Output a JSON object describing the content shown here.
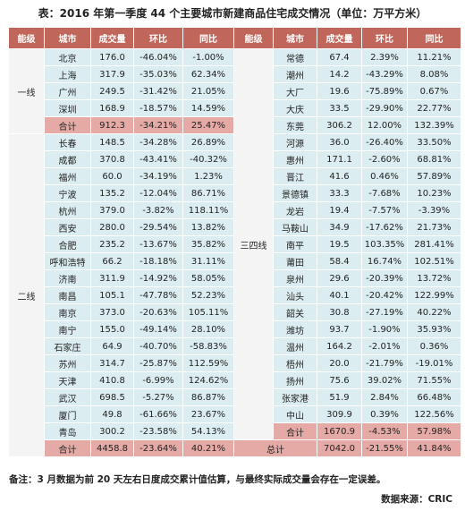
{
  "title": "表：2016 年第一季度 44 个主要城市新建商品住宅成交情况（单位：万平方米）",
  "table": {
    "header": [
      "能级",
      "城市",
      "成交量",
      "环比",
      "同比",
      "能级",
      "城市",
      "成交量",
      "环比",
      "同比"
    ],
    "left_groups": [
      {
        "tier": "一线",
        "rows": [
          [
            "北京",
            "176.0",
            "-46.04%",
            "-1.00%"
          ],
          [
            "上海",
            "317.9",
            "-35.03%",
            "62.34%"
          ],
          [
            "广州",
            "249.5",
            "-31.42%",
            "21.05%"
          ],
          [
            "深圳",
            "168.9",
            "-18.57%",
            "14.59%"
          ],
          [
            "合计",
            "912.3",
            "-34.21%",
            "25.47%"
          ]
        ]
      },
      {
        "tier": "二线",
        "rows": [
          [
            "长春",
            "148.5",
            "-34.28%",
            "26.89%"
          ],
          [
            "成都",
            "370.8",
            "-43.41%",
            "-40.32%"
          ],
          [
            "福州",
            "60.0",
            "-34.19%",
            "1.23%"
          ],
          [
            "宁波",
            "135.2",
            "-12.04%",
            "86.71%"
          ],
          [
            "杭州",
            "379.0",
            "-3.82%",
            "118.11%"
          ],
          [
            "西安",
            "280.0",
            "-29.54%",
            "13.82%"
          ],
          [
            "合肥",
            "235.2",
            "-13.67%",
            "35.82%"
          ],
          [
            "呼和浩特",
            "66.2",
            "-18.18%",
            "31.11%"
          ],
          [
            "济南",
            "311.9",
            "-14.92%",
            "58.05%"
          ],
          [
            "南昌",
            "105.1",
            "-47.78%",
            "52.23%"
          ],
          [
            "南京",
            "373.0",
            "-20.63%",
            "105.11%"
          ],
          [
            "南宁",
            "155.0",
            "-49.14%",
            "28.10%"
          ],
          [
            "石家庄",
            "64.9",
            "-40.70%",
            "-58.83%"
          ],
          [
            "苏州",
            "314.7",
            "-25.87%",
            "112.59%"
          ],
          [
            "天津",
            "410.8",
            "-6.99%",
            "124.62%"
          ],
          [
            "武汉",
            "698.5",
            "-5.27%",
            "86.87%"
          ],
          [
            "厦门",
            "49.8",
            "-61.66%",
            "23.67%"
          ],
          [
            "青岛",
            "300.2",
            "-23.58%",
            "54.13%"
          ],
          [
            "合计",
            "4458.8",
            "-23.64%",
            "40.21%"
          ]
        ]
      }
    ],
    "right_groups": [
      {
        "tier": "三四线",
        "rows": [
          [
            "常德",
            "67.4",
            "2.39%",
            "11.21%"
          ],
          [
            "潮州",
            "14.2",
            "-43.29%",
            "8.08%"
          ],
          [
            "大厂",
            "19.6",
            "-75.89%",
            "0.67%"
          ],
          [
            "大庆",
            "33.5",
            "-29.90%",
            "22.77%"
          ],
          [
            "东莞",
            "306.2",
            "12.00%",
            "132.39%"
          ],
          [
            "河源",
            "36.0",
            "-26.40%",
            "33.50%"
          ],
          [
            "惠州",
            "171.1",
            "-2.60%",
            "68.81%"
          ],
          [
            "晋江",
            "41.6",
            "0.46%",
            "57.89%"
          ],
          [
            "景德镇",
            "33.3",
            "-7.68%",
            "10.23%"
          ],
          [
            "龙岩",
            "19.4",
            "-7.57%",
            "-3.39%"
          ],
          [
            "马鞍山",
            "34.9",
            "-17.62%",
            "21.73%"
          ],
          [
            "南平",
            "19.5",
            "103.35%",
            "281.41%"
          ],
          [
            "莆田",
            "58.4",
            "16.74%",
            "102.51%"
          ],
          [
            "泉州",
            "29.6",
            "-20.39%",
            "13.72%"
          ],
          [
            "汕头",
            "40.1",
            "-20.42%",
            "122.99%"
          ],
          [
            "韶关",
            "30.8",
            "-27.19%",
            "40.22%"
          ],
          [
            "潍坊",
            "93.7",
            "-1.90%",
            "35.93%"
          ],
          [
            "温州",
            "164.2",
            "-2.01%",
            "0.36%"
          ],
          [
            "梧州",
            "20.0",
            "-21.79%",
            "-19.01%"
          ],
          [
            "扬州",
            "75.6",
            "39.02%",
            "71.55%"
          ],
          [
            "张家港",
            "51.9",
            "2.84%",
            "66.48%"
          ],
          [
            "中山",
            "309.9",
            "0.39%",
            "122.56%"
          ],
          [
            "合计",
            "1670.9",
            "-4.53%",
            "57.98%"
          ]
        ]
      }
    ],
    "grand_total": [
      "总计",
      "7042.0",
      "-21.55%",
      "41.84%"
    ]
  },
  "note": "备注：3 月数据为前 20 天左右日度成交累计值估算，与最终实际成交量会存在一定误差。",
  "source": "数据来源：CRIC"
}
